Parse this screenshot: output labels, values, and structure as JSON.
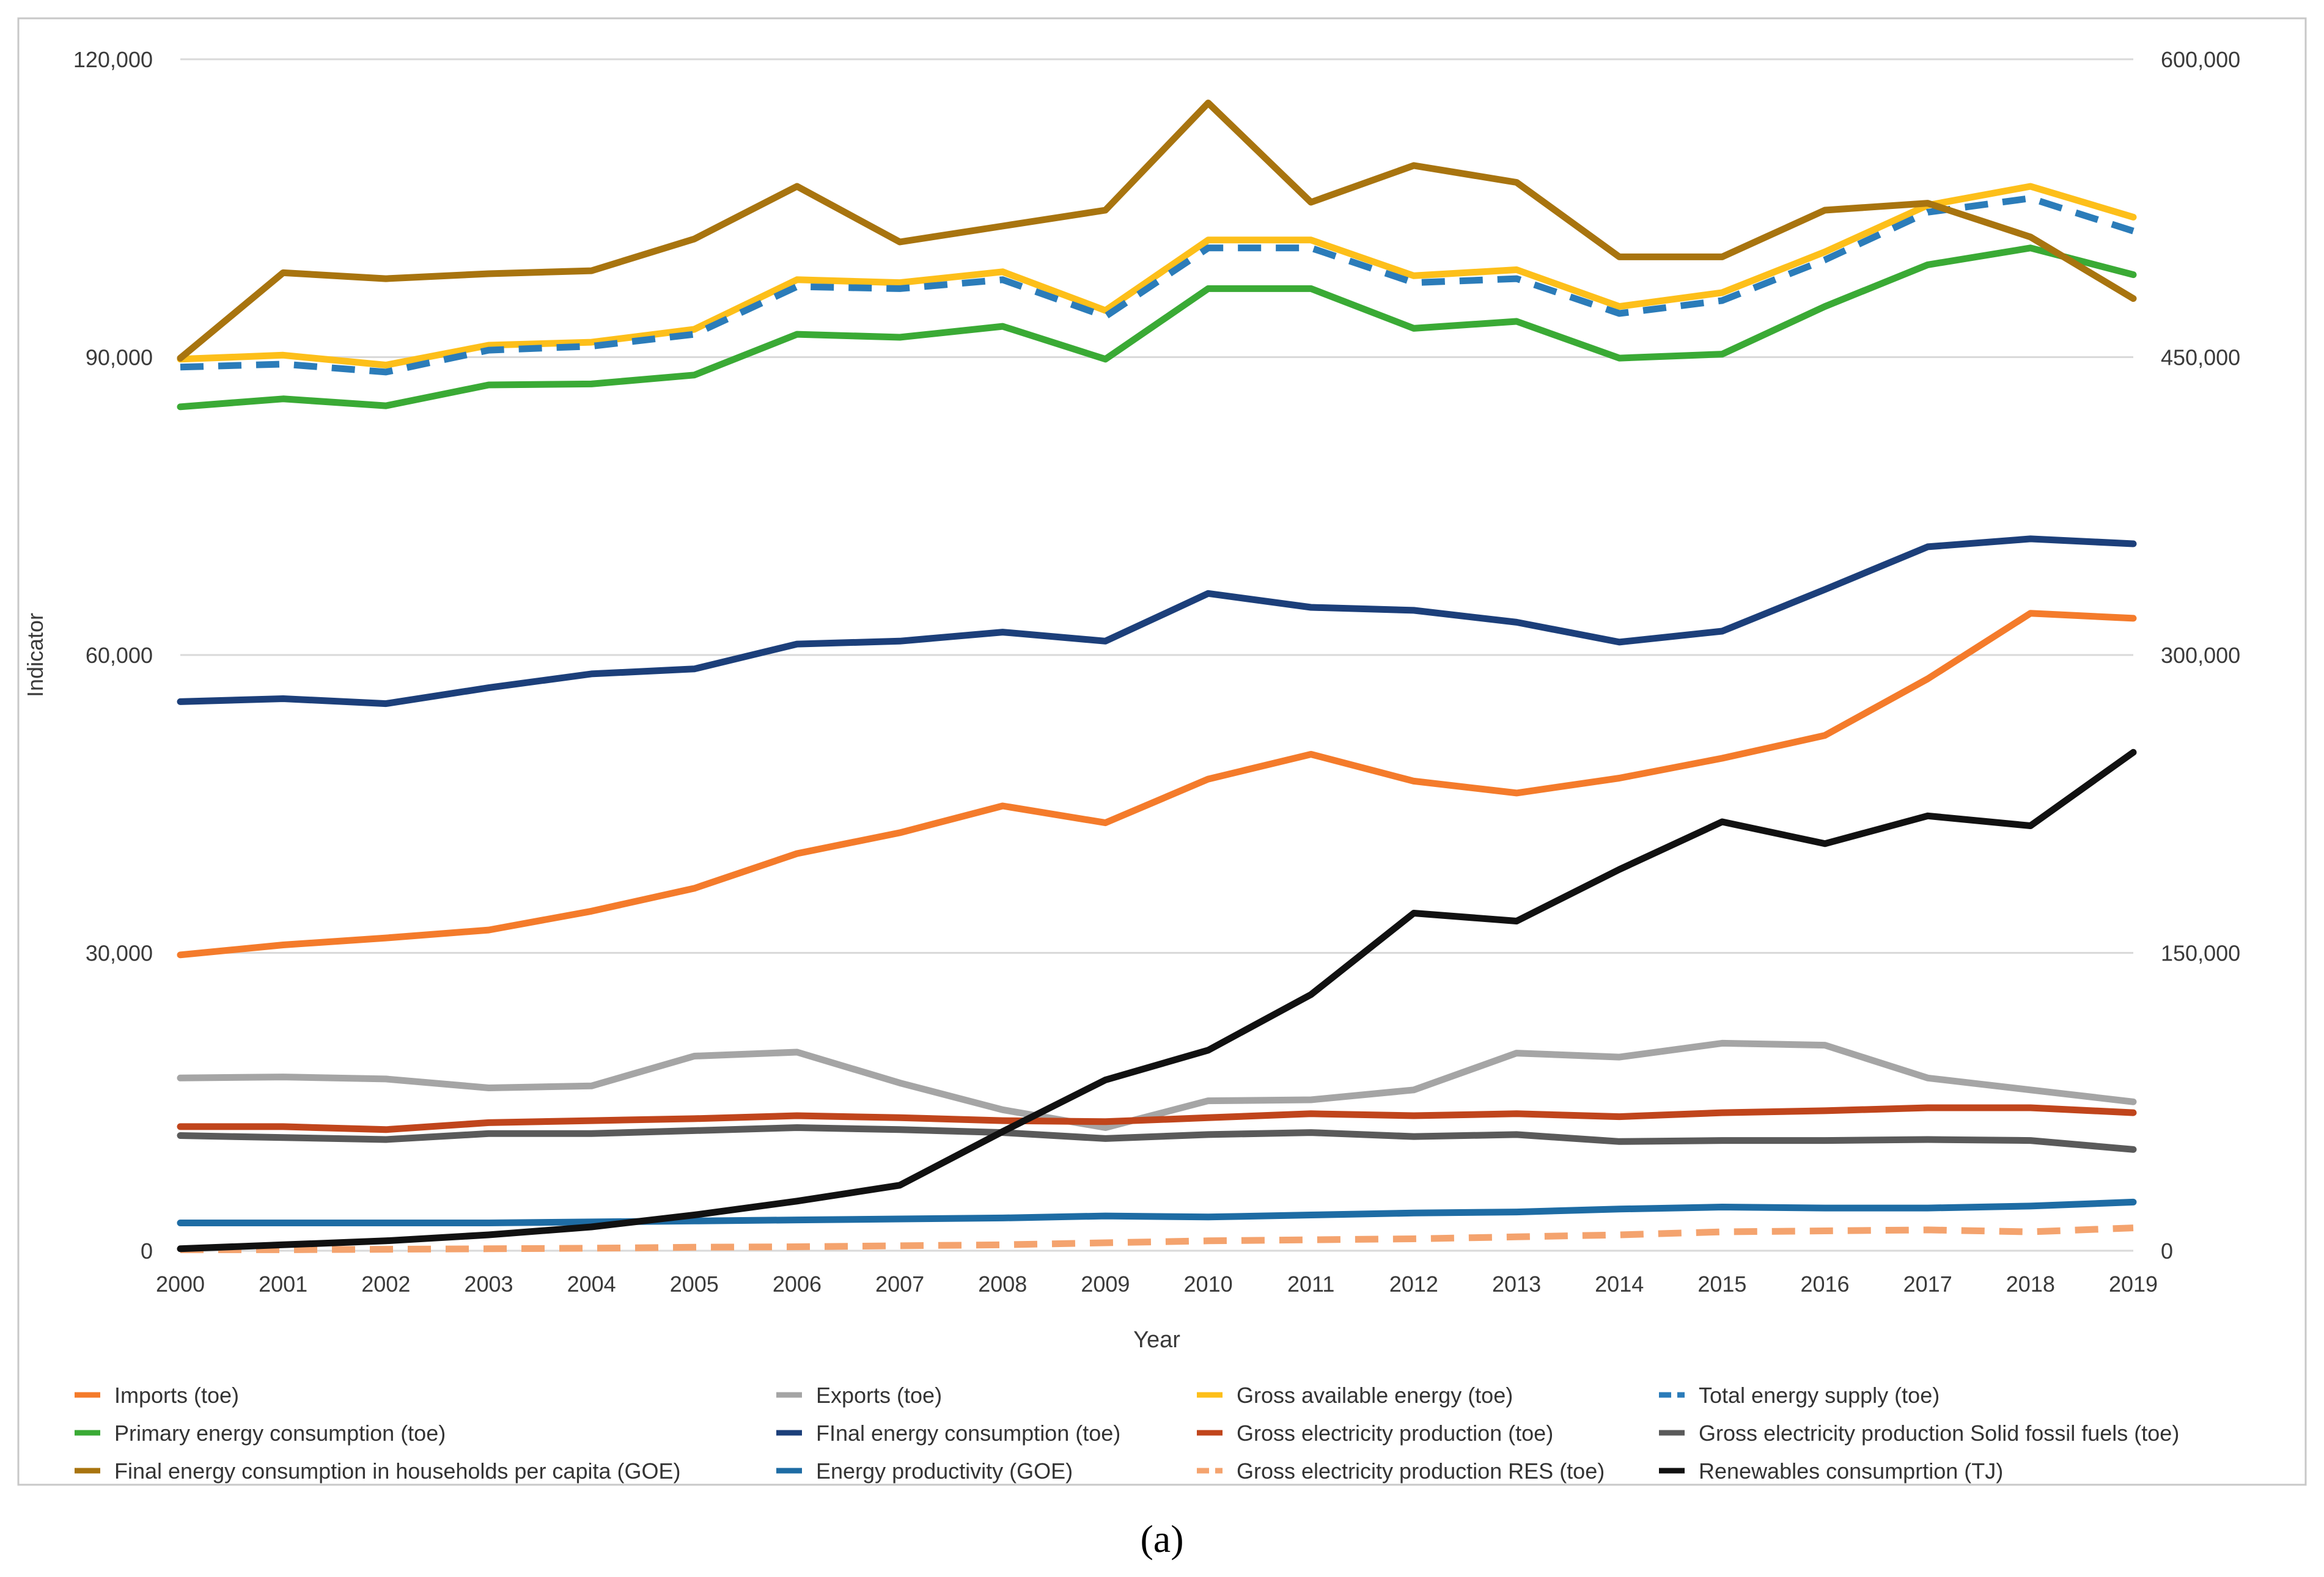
{
  "chart_data": {
    "type": "line",
    "title": "",
    "caption": "(a)",
    "xlabel": "Year",
    "ylabel": "Indicator",
    "categories": [
      "2000",
      "2001",
      "2002",
      "2003",
      "2004",
      "2005",
      "2006",
      "2007",
      "2008",
      "2009",
      "2010",
      "2011",
      "2012",
      "2013",
      "2014",
      "2015",
      "2016",
      "2017",
      "2018",
      "2019"
    ],
    "ylim": [
      0,
      120000
    ],
    "y2lim": [
      0,
      600000
    ],
    "y_ticks": [
      0,
      30000,
      60000,
      90000,
      120000
    ],
    "y_tick_labels": [
      "0",
      "30,000",
      "60,000",
      "90,000",
      "120,000"
    ],
    "y2_ticks": [
      0,
      150000,
      300000,
      450000,
      600000
    ],
    "y2_tick_labels": [
      "0",
      "150,000",
      "300,000",
      "450,000",
      "600,000"
    ],
    "grid": true,
    "legend_position": "bottom",
    "series": [
      {
        "name": "Imports  (toe)",
        "color": "#F47B2B",
        "dash": false,
        "axis": "left",
        "values": [
          29800,
          30800,
          31500,
          32300,
          34200,
          36500,
          40000,
          42100,
          44800,
          43100,
          47500,
          50000,
          47300,
          46100,
          47600,
          49600,
          51900,
          57600,
          64200,
          63700
        ]
      },
      {
        "name": "Exports  (toe)",
        "color": "#A5A5A5",
        "dash": false,
        "axis": "left",
        "values": [
          17400,
          17500,
          17300,
          16400,
          16600,
          19600,
          20000,
          16900,
          14200,
          12400,
          15100,
          15200,
          16200,
          19900,
          19500,
          20900,
          20700,
          17400,
          16200,
          15000
        ]
      },
      {
        "name": "Gross available energy  (toe)",
        "color": "#FDBF1A",
        "dash": false,
        "axis": "left",
        "values": [
          89800,
          90200,
          89200,
          91200,
          91500,
          92800,
          97800,
          97500,
          98600,
          94700,
          101800,
          101800,
          98200,
          98800,
          95100,
          96500,
          100600,
          105300,
          107200,
          104100
        ]
      },
      {
        "name": "Total energy supply (toe)",
        "color": "#2B7CB9",
        "dash": true,
        "axis": "left",
        "values": [
          89000,
          89300,
          88500,
          90700,
          91100,
          92300,
          97100,
          96900,
          97800,
          94100,
          101000,
          101000,
          97500,
          97900,
          94400,
          95700,
          99800,
          104600,
          106000,
          102700
        ]
      },
      {
        "name": "Primary energy consumption  (toe)",
        "color": "#3AAA35",
        "dash": false,
        "axis": "left",
        "values": [
          85000,
          85800,
          85100,
          87200,
          87300,
          88200,
          92300,
          92000,
          93100,
          89800,
          96900,
          96900,
          92900,
          93600,
          89900,
          90300,
          95100,
          99300,
          101000,
          98300
        ]
      },
      {
        "name": "FInal energy consumption  (toe)",
        "color": "#1C3F7A",
        "dash": false,
        "axis": "left",
        "values": [
          55300,
          55600,
          55100,
          56700,
          58100,
          58600,
          61100,
          61400,
          62300,
          61400,
          66200,
          64800,
          64500,
          63300,
          61300,
          62400,
          66600,
          70900,
          71700,
          71200
        ]
      },
      {
        "name": "Gross electricity production  (toe)",
        "color": "#C0451C",
        "dash": false,
        "axis": "left",
        "values": [
          12500,
          12500,
          12200,
          12900,
          13100,
          13300,
          13600,
          13400,
          13100,
          13000,
          13400,
          13800,
          13600,
          13800,
          13500,
          13900,
          14100,
          14400,
          14400,
          13900
        ]
      },
      {
        "name": "Gross electricity production Solid fossil fuels  (toe)",
        "color": "#5A5A5A",
        "dash": false,
        "axis": "left",
        "values": [
          11600,
          11400,
          11200,
          11800,
          11800,
          12100,
          12400,
          12200,
          11900,
          11300,
          11700,
          11900,
          11500,
          11700,
          11000,
          11100,
          11100,
          11200,
          11100,
          10200
        ]
      },
      {
        "name": "Final energy consumption in households per capita (GOE)",
        "color": "#A8740F",
        "dash": false,
        "axis": "left",
        "values": [
          89900,
          98500,
          97900,
          98400,
          98700,
          101900,
          107200,
          101600,
          103200,
          104800,
          115600,
          105600,
          109300,
          107600,
          100100,
          100100,
          104800,
          105500,
          102100,
          95900
        ]
      },
      {
        "name": "Energy productivity (GOE)",
        "color": "#1E6CA4",
        "dash": false,
        "axis": "left",
        "values": [
          2800,
          2800,
          2800,
          2800,
          2900,
          3000,
          3100,
          3200,
          3300,
          3500,
          3400,
          3600,
          3800,
          3900,
          4200,
          4400,
          4300,
          4300,
          4500,
          4900
        ]
      },
      {
        "name": "Gross electricity production RES (toe)",
        "color": "#F4A36E",
        "dash": true,
        "axis": "left",
        "values": [
          100,
          100,
          150,
          200,
          250,
          350,
          400,
          500,
          600,
          800,
          1000,
          1100,
          1200,
          1400,
          1600,
          1900,
          2000,
          2100,
          1900,
          2300
        ]
      },
      {
        "name": "Renewables consumprtion (TJ)",
        "color": "#111111",
        "dash": false,
        "axis": "right",
        "values": [
          1000,
          3000,
          5000,
          8000,
          12000,
          18000,
          25000,
          33000,
          60000,
          86000,
          101000,
          129000,
          170000,
          166000,
          192000,
          216000,
          205000,
          219000,
          214000,
          251000
        ]
      }
    ]
  }
}
